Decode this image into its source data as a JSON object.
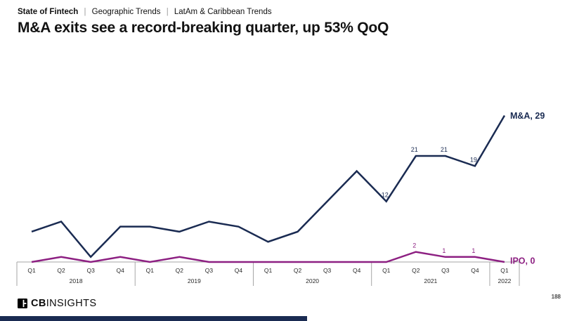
{
  "header": {
    "eyebrow_bold": "State of Fintech",
    "separator": "|",
    "eyebrow_item1": "Geographic Trends",
    "eyebrow_item2": "LatAm & Caribbean Trends",
    "title": "M&A exits see a record-breaking quarter, up 53% QoQ"
  },
  "footer": {
    "logo_bold": "CB",
    "logo_light": "INSIGHTS",
    "page_number": "188"
  },
  "colors": {
    "mna_navy": "#1a2b52",
    "ipo_purple": "#8d2082",
    "axis_gray": "#a6a6a6",
    "tick_text": "#2a2a2a"
  },
  "chart_data": {
    "type": "line",
    "categories": [
      "Q1",
      "Q2",
      "Q3",
      "Q4",
      "Q1",
      "Q2",
      "Q3",
      "Q4",
      "Q1",
      "Q2",
      "Q3",
      "Q4",
      "Q1",
      "Q2",
      "Q3",
      "Q4",
      "Q1"
    ],
    "year_groups": [
      {
        "year": "2018",
        "quarters": 4
      },
      {
        "year": "2019",
        "quarters": 4
      },
      {
        "year": "2020",
        "quarters": 4
      },
      {
        "year": "2021",
        "quarters": 4
      },
      {
        "year": "2022",
        "quarters": 1
      }
    ],
    "series": [
      {
        "name": "M&A",
        "color": "#1a2b52",
        "values": [
          6,
          8,
          1,
          7,
          7,
          6,
          8,
          7,
          4,
          6,
          12,
          18,
          12,
          21,
          21,
          19,
          29
        ],
        "point_labels": [
          null,
          null,
          null,
          null,
          null,
          null,
          null,
          null,
          null,
          null,
          null,
          null,
          "12",
          "21",
          "21",
          "19",
          null
        ],
        "end_label": "M&A, 29"
      },
      {
        "name": "IPO",
        "color": "#8d2082",
        "values": [
          0,
          1,
          0,
          1,
          0,
          1,
          0,
          0,
          0,
          0,
          0,
          0,
          0,
          2,
          1,
          1,
          0
        ],
        "point_labels": [
          null,
          null,
          null,
          null,
          null,
          null,
          null,
          null,
          null,
          null,
          null,
          null,
          null,
          "2",
          "1",
          "1",
          null
        ],
        "end_label": "IPO, 0"
      }
    ],
    "ylim": [
      0,
      30
    ],
    "grid": false,
    "legend_position": "line-end-labels"
  }
}
